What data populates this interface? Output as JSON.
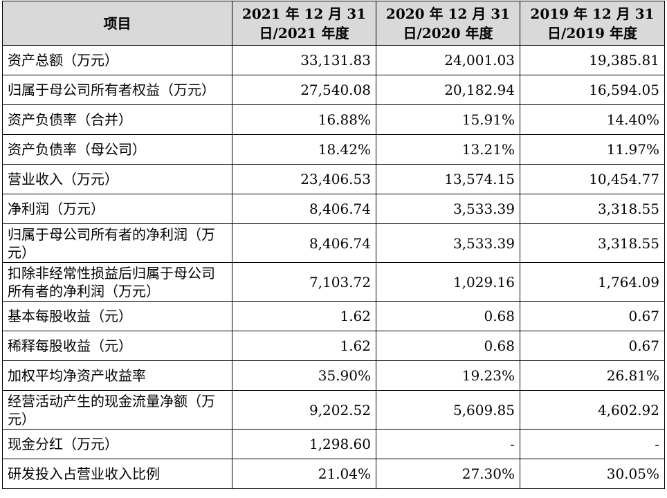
{
  "table": {
    "headers": [
      "项目",
      "2021 年 12 月 31 日/2021 年度",
      "2020 年 12 月 31 日/2020 年度",
      "2019 年 12 月 31 日/2019 年度"
    ],
    "rows": [
      {
        "label": "资产总额（万元）",
        "values": [
          "33,131.83",
          "24,001.03",
          "19,385.81"
        ]
      },
      {
        "label": "归属于母公司所有者权益（万元）",
        "values": [
          "27,540.08",
          "20,182.94",
          "16,594.05"
        ]
      },
      {
        "label": "资产负债率（合并）",
        "values": [
          "16.88%",
          "15.91%",
          "14.40%"
        ]
      },
      {
        "label": "资产负债率（母公司）",
        "values": [
          "18.42%",
          "13.21%",
          "11.97%"
        ]
      },
      {
        "label": "营业收入（万元）",
        "values": [
          "23,406.53",
          "13,574.15",
          "10,454.77"
        ]
      },
      {
        "label": "净利润（万元）",
        "values": [
          "8,406.74",
          "3,533.39",
          "3,318.55"
        ]
      },
      {
        "label": "归属于母公司所有者的净利润（万元）",
        "values": [
          "8,406.74",
          "3,533.39",
          "3,318.55"
        ]
      },
      {
        "label": "扣除非经常性损益后归属于母公司所有者的净利润（万元）",
        "values": [
          "7,103.72",
          "1,029.16",
          "1,764.09"
        ]
      },
      {
        "label": "基本每股收益（元）",
        "values": [
          "1.62",
          "0.68",
          "0.67"
        ]
      },
      {
        "label": "稀释每股收益（元）",
        "values": [
          "1.62",
          "0.68",
          "0.67"
        ]
      },
      {
        "label": "加权平均净资产收益率",
        "values": [
          "35.90%",
          "19.23%",
          "26.81%"
        ]
      },
      {
        "label": "经营活动产生的现金流量净额（万元）",
        "values": [
          "9,202.52",
          "5,609.85",
          "4,602.92"
        ]
      },
      {
        "label": "现金分红（万元）",
        "values": [
          "1,298.60",
          "-",
          "-"
        ]
      },
      {
        "label": "研发投入占营业收入比例",
        "values": [
          "21.04%",
          "27.30%",
          "30.05%"
        ]
      }
    ]
  }
}
